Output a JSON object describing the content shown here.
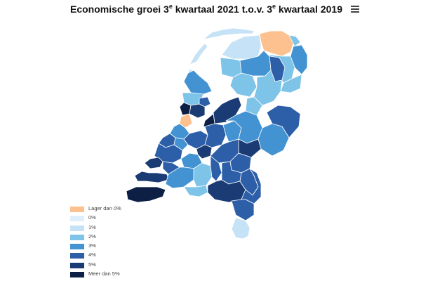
{
  "header": {
    "title_part1": "Economische groei 3",
    "title_sup1": "e",
    "title_part2": " kwartaal 2021 t.o.v. 3",
    "title_sup2": "e",
    "title_part3": " kwartaal 2019",
    "menu_icon": "hamburger-menu-icon"
  },
  "colors": {
    "lager": "#fdc18f",
    "c0": "#deeffb",
    "c1": "#c6e2f6",
    "c2": "#7ec3e8",
    "c3": "#4393d3",
    "c4": "#2c5fa8",
    "c5": "#1a3b73",
    "meer": "#0d1f45",
    "border": "#ffffff"
  },
  "legend": [
    {
      "label": "Lager dan 0%",
      "color": "#fdc18f"
    },
    {
      "label": "0%",
      "color": "#deeffb"
    },
    {
      "label": "1%",
      "color": "#c6e2f6"
    },
    {
      "label": "2%",
      "color": "#7ec3e8"
    },
    {
      "label": "3%",
      "color": "#4393d3"
    },
    {
      "label": "4%",
      "color": "#2c5fa8"
    },
    {
      "label": "5%",
      "color": "#1a3b73"
    },
    {
      "label": "Meer dan 5%",
      "color": "#0d1f45"
    }
  ]
}
